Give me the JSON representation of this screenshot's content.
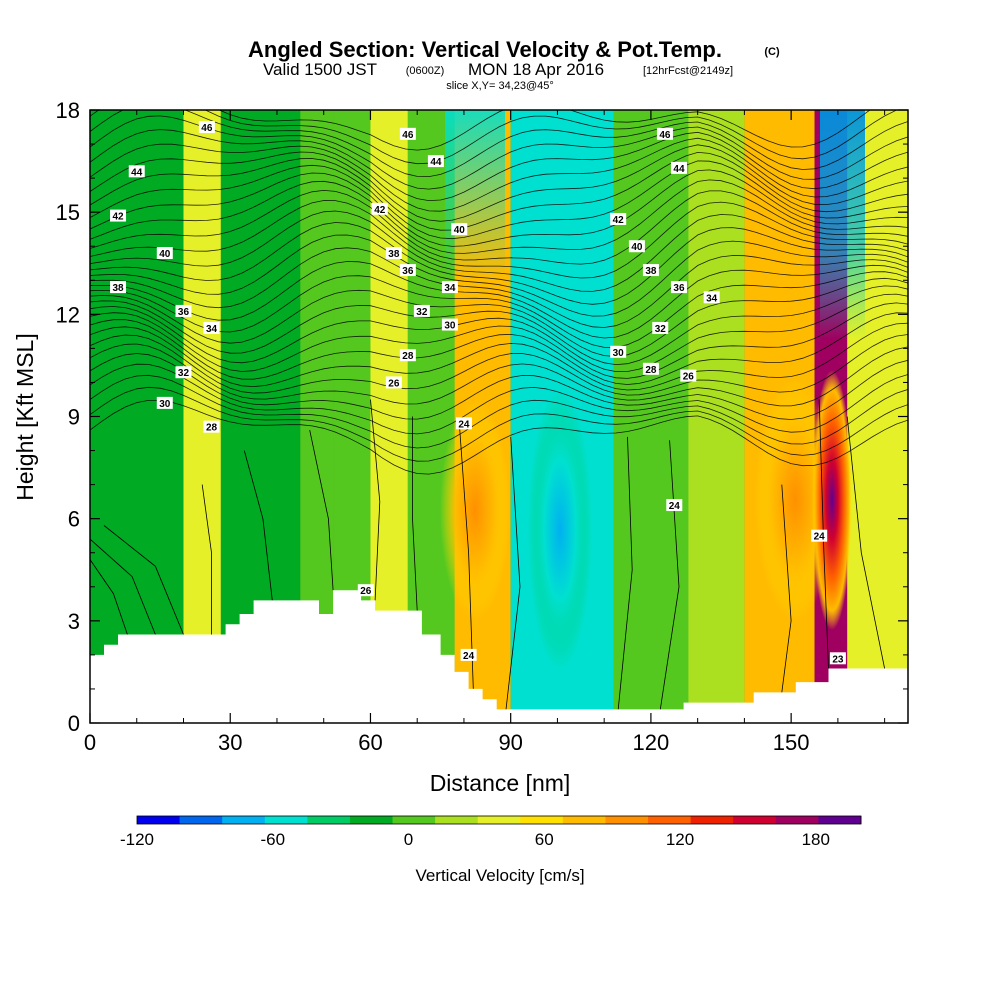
{
  "header": {
    "title": "Angled Section: Vertical Velocity & Pot.Temp.",
    "title_mark": "(C)",
    "valid_prefix": "Valid 1500 JST",
    "valid_utc": "(0600Z)",
    "valid_date": "MON 18 Apr 2016",
    "valid_fcst": "[12hrFcst@2149z]",
    "slice": "slice X,Y= 34,23@45°"
  },
  "chart_data": {
    "type": "heatmap",
    "title": "Angled Section: Vertical Velocity & Pot.Temp.",
    "xlabel": "Distance [nm]",
    "ylabel": "Height [Kft MSL]",
    "xlim": [
      0,
      175
    ],
    "ylim": [
      0,
      18
    ],
    "x_ticks": [
      0,
      30,
      60,
      90,
      120,
      150
    ],
    "y_ticks": [
      0,
      3,
      6,
      9,
      12,
      15,
      18
    ],
    "x_tick_labels": [
      "0",
      "30",
      "60",
      "90",
      "120",
      "150"
    ],
    "y_tick_labels": [
      "0",
      "3",
      "6",
      "9",
      "12",
      "15",
      "18"
    ],
    "colorbar": {
      "title": "Vertical Velocity [cm/s]",
      "min": -120,
      "max": 200,
      "step": 20,
      "tick_values": [
        -120,
        -60,
        0,
        60,
        120,
        180
      ],
      "tick_labels": [
        "-120",
        "-60",
        "0",
        "60",
        "120",
        "180"
      ],
      "colors": [
        "#0000ee",
        "#0066ee",
        "#00b0f0",
        "#00e0d0",
        "#00cc66",
        "#00aa22",
        "#55c820",
        "#aae020",
        "#e6f028",
        "#ffe000",
        "#ffbb00",
        "#ff9000",
        "#ff6000",
        "#ee2200",
        "#d00030",
        "#a00060",
        "#600090"
      ]
    },
    "vertical_velocity_bands": [
      {
        "x": [
          0,
          20
        ],
        "value": -15
      },
      {
        "x": [
          20,
          28
        ],
        "value": 40
      },
      {
        "x": [
          28,
          45
        ],
        "value": -5
      },
      {
        "x": [
          45,
          52
        ],
        "value": 10
      },
      {
        "x": [
          52,
          60
        ],
        "value": 0
      },
      {
        "x": [
          60,
          68
        ],
        "value": 45
      },
      {
        "x": [
          68,
          78
        ],
        "value": 5
      },
      {
        "x": [
          78,
          90
        ],
        "value": 80
      },
      {
        "x": [
          90,
          112
        ],
        "value": -60
      },
      {
        "x": [
          112,
          128
        ],
        "value": 0
      },
      {
        "x": [
          128,
          140
        ],
        "value": 30
      },
      {
        "x": [
          140,
          155
        ],
        "value": 80
      },
      {
        "x": [
          155,
          162
        ],
        "value": 190
      },
      {
        "x": [
          162,
          175
        ],
        "value": 40
      }
    ],
    "upper_downdraft_cores": [
      {
        "x": 80,
        "y": [
          13,
          18
        ],
        "value": -40
      },
      {
        "x": 160,
        "y": [
          11,
          18
        ],
        "value": -70
      }
    ],
    "pot_temp_contour_labels": [
      {
        "x": 25,
        "y": 17.5,
        "label": "46"
      },
      {
        "x": 68,
        "y": 17.3,
        "label": "46"
      },
      {
        "x": 123,
        "y": 17.3,
        "label": "46"
      },
      {
        "x": 10,
        "y": 16.2,
        "label": "44"
      },
      {
        "x": 74,
        "y": 16.5,
        "label": "44"
      },
      {
        "x": 126,
        "y": 16.3,
        "label": "44"
      },
      {
        "x": 6,
        "y": 14.9,
        "label": "42"
      },
      {
        "x": 62,
        "y": 15.1,
        "label": "42"
      },
      {
        "x": 113,
        "y": 14.8,
        "label": "42"
      },
      {
        "x": 16,
        "y": 13.8,
        "label": "40"
      },
      {
        "x": 79,
        "y": 14.5,
        "label": "40"
      },
      {
        "x": 117,
        "y": 14.0,
        "label": "40"
      },
      {
        "x": 6,
        "y": 12.8,
        "label": "38"
      },
      {
        "x": 65,
        "y": 13.8,
        "label": "38"
      },
      {
        "x": 68,
        "y": 13.3,
        "label": "36"
      },
      {
        "x": 120,
        "y": 13.3,
        "label": "38"
      },
      {
        "x": 20,
        "y": 12.1,
        "label": "36"
      },
      {
        "x": 77,
        "y": 12.8,
        "label": "34"
      },
      {
        "x": 126,
        "y": 12.8,
        "label": "36"
      },
      {
        "x": 26,
        "y": 11.6,
        "label": "34"
      },
      {
        "x": 71,
        "y": 12.1,
        "label": "32"
      },
      {
        "x": 77,
        "y": 11.7,
        "label": "30"
      },
      {
        "x": 133,
        "y": 12.5,
        "label": "34"
      },
      {
        "x": 122,
        "y": 11.6,
        "label": "32"
      },
      {
        "x": 20,
        "y": 10.3,
        "label": "32"
      },
      {
        "x": 68,
        "y": 10.8,
        "label": "28"
      },
      {
        "x": 113,
        "y": 10.9,
        "label": "30"
      },
      {
        "x": 16,
        "y": 9.4,
        "label": "30"
      },
      {
        "x": 65,
        "y": 10.0,
        "label": "26"
      },
      {
        "x": 120,
        "y": 10.4,
        "label": "28"
      },
      {
        "x": 128,
        "y": 10.2,
        "label": "26"
      },
      {
        "x": 26,
        "y": 8.7,
        "label": "28"
      },
      {
        "x": 80,
        "y": 8.8,
        "label": "24"
      },
      {
        "x": 125,
        "y": 6.4,
        "label": "24"
      },
      {
        "x": 156,
        "y": 5.5,
        "label": "24"
      },
      {
        "x": 59,
        "y": 3.9,
        "label": "26"
      },
      {
        "x": 81,
        "y": 2.0,
        "label": "24"
      },
      {
        "x": 160,
        "y": 1.9,
        "label": "23"
      }
    ],
    "terrain": [
      [
        0,
        2.0
      ],
      [
        3,
        2.0
      ],
      [
        3,
        2.3
      ],
      [
        6,
        2.3
      ],
      [
        6,
        2.6
      ],
      [
        29,
        2.6
      ],
      [
        29,
        2.9
      ],
      [
        32,
        2.9
      ],
      [
        32,
        3.2
      ],
      [
        35,
        3.2
      ],
      [
        35,
        3.6
      ],
      [
        49,
        3.6
      ],
      [
        49,
        3.2
      ],
      [
        52,
        3.2
      ],
      [
        52,
        3.9
      ],
      [
        58,
        3.9
      ],
      [
        58,
        3.6
      ],
      [
        61,
        3.6
      ],
      [
        61,
        3.3
      ],
      [
        71,
        3.3
      ],
      [
        71,
        2.6
      ],
      [
        75,
        2.6
      ],
      [
        75,
        2.0
      ],
      [
        78,
        2.0
      ],
      [
        78,
        1.5
      ],
      [
        81,
        1.5
      ],
      [
        81,
        1.0
      ],
      [
        84,
        1.0
      ],
      [
        84,
        0.7
      ],
      [
        87,
        0.7
      ],
      [
        87,
        0.4
      ],
      [
        127,
        0.4
      ],
      [
        127,
        0.6
      ],
      [
        142,
        0.6
      ],
      [
        142,
        0.9
      ],
      [
        151,
        0.9
      ],
      [
        151,
        1.2
      ],
      [
        158,
        1.2
      ],
      [
        158,
        1.6
      ],
      [
        175,
        1.6
      ]
    ]
  }
}
